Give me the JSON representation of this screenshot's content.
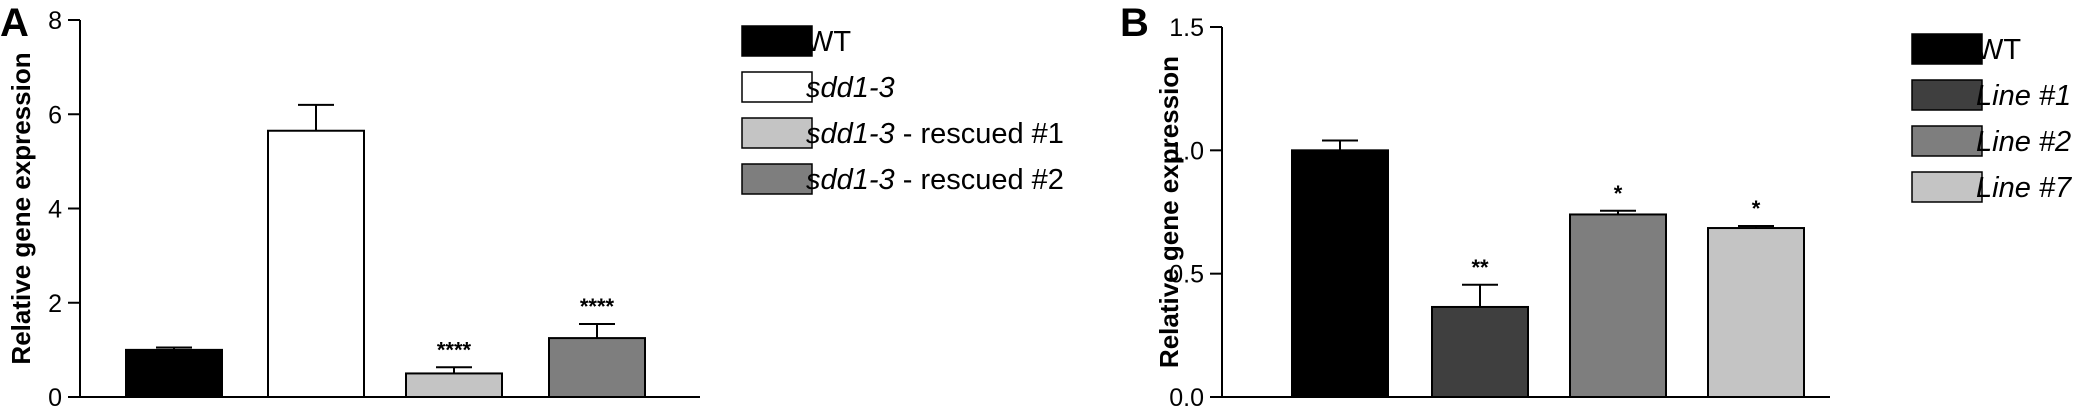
{
  "chart_data": [
    {
      "type": "bar",
      "panel_label": "A",
      "ylabel": "Relative gene expression",
      "ylim": [
        0,
        8
      ],
      "yticks": [
        "0",
        "2",
        "4",
        "6",
        "8"
      ],
      "categories": [
        "WT",
        "sdd1-3",
        "sdd1-3 - rescued #1",
        "sdd1-3 - rescued #2"
      ],
      "values": [
        1.0,
        5.65,
        0.5,
        1.25
      ],
      "errors": [
        0.05,
        0.55,
        0.13,
        0.3
      ],
      "annotations": [
        "",
        "",
        "****",
        "****"
      ],
      "colors": [
        "#000000",
        "#ffffff",
        "#c4c4c4",
        "#7e7e7e"
      ],
      "legend": [
        {
          "italic": "",
          "rest": "WT"
        },
        {
          "italic": "sdd1-3",
          "rest": ""
        },
        {
          "italic": "sdd1-3",
          "rest": " - rescued #1"
        },
        {
          "italic": "sdd1-3",
          "rest": " - rescued #2"
        }
      ],
      "legend_position": "right",
      "grid": false
    },
    {
      "type": "bar",
      "panel_label": "B",
      "ylabel": "Relative gene expression",
      "ylim": [
        0,
        1.5
      ],
      "yticks": [
        "0.0",
        "0.5",
        "1.0",
        "1.5"
      ],
      "categories": [
        "WT",
        "Line #1",
        "Line #2",
        "Line #7"
      ],
      "values": [
        1.0,
        0.365,
        0.74,
        0.685
      ],
      "errors": [
        0.04,
        0.09,
        0.015,
        0.008
      ],
      "annotations": [
        "",
        "**",
        "*",
        "*"
      ],
      "colors": [
        "#000000",
        "#3f3f3f",
        "#7e7e7e",
        "#c4c4c4"
      ],
      "legend": [
        {
          "italic": "",
          "rest": "WT"
        },
        {
          "italic": "Line #1",
          "rest": ""
        },
        {
          "italic": "Line #2",
          "rest": ""
        },
        {
          "italic": "Line #7",
          "rest": ""
        }
      ],
      "legend_position": "right",
      "grid": false
    }
  ]
}
